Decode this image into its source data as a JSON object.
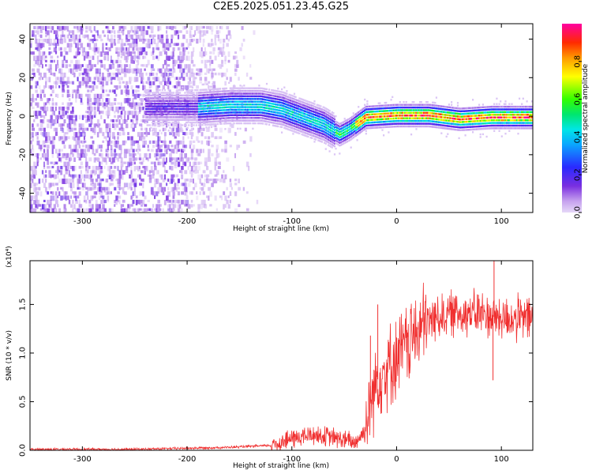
{
  "title": "C2E5.2025.051.23.45.G25",
  "colors": {
    "spectrogram_low": "#c8a8f0",
    "spectrogram_mid": "#7a2fe0",
    "snr_line": "#f03030"
  },
  "chart_data": [
    {
      "type": "heatmap",
      "title": "C2E5.2025.051.23.45.G25",
      "xlabel": "Height of straight line (km)",
      "ylabel": "Frequency (Hz)",
      "xlim": [
        -350,
        130
      ],
      "ylim": [
        -50,
        48
      ],
      "x_ticks": [
        -300,
        -200,
        -100,
        0,
        100
      ],
      "y_ticks": [
        -40,
        -20,
        0,
        20,
        40
      ],
      "colorbar": {
        "label": "Normalized spectral amplitude",
        "range": [
          0,
          1
        ],
        "ticks": [
          "0.0",
          "0.2",
          "0.4",
          "0.6",
          "0.8"
        ],
        "tick_values": [
          0,
          0.2,
          0.4,
          0.6,
          0.8
        ],
        "colormap": "rainbow (violet-blue-cyan-green-yellow-red-magenta)"
      },
      "signal_track": [
        {
          "x": -190,
          "y": 5
        },
        {
          "x": -160,
          "y": 6
        },
        {
          "x": -130,
          "y": 6
        },
        {
          "x": -110,
          "y": 4
        },
        {
          "x": -90,
          "y": 0
        },
        {
          "x": -70,
          "y": -4
        },
        {
          "x": -55,
          "y": -9
        },
        {
          "x": -45,
          "y": -6
        },
        {
          "x": -30,
          "y": 0
        },
        {
          "x": 0,
          "y": 1
        },
        {
          "x": 30,
          "y": 1
        },
        {
          "x": 60,
          "y": -1
        },
        {
          "x": 90,
          "y": 0
        },
        {
          "x": 130,
          "y": 0
        }
      ],
      "noise_region_x": [
        -350,
        -130
      ]
    },
    {
      "type": "line",
      "xlabel": "Height of straight line (km)",
      "ylabel": "SNR (10 * v/v)",
      "y_scale_label": "(x10⁴)",
      "xlim": [
        -350,
        130
      ],
      "ylim": [
        0,
        1.95
      ],
      "x_ticks": [
        -300,
        -200,
        -100,
        0,
        100
      ],
      "y_ticks": [
        "0.0",
        "0.5",
        "1.0",
        "1.5"
      ],
      "y_tick_values": [
        0,
        0.5,
        1.0,
        1.5
      ],
      "series": [
        {
          "points": [
            {
              "x": -350,
              "y": 0.01
            },
            {
              "x": -250,
              "y": 0.01
            },
            {
              "x": -160,
              "y": 0.03
            },
            {
              "x": -120,
              "y": 0.05
            },
            {
              "x": -100,
              "y": 0.12
            },
            {
              "x": -80,
              "y": 0.16
            },
            {
              "x": -60,
              "y": 0.13
            },
            {
              "x": -40,
              "y": 0.08
            },
            {
              "x": -30,
              "y": 0.2
            },
            {
              "x": -25,
              "y": 0.5
            },
            {
              "x": -20,
              "y": 0.7
            },
            {
              "x": -10,
              "y": 0.85
            },
            {
              "x": 0,
              "y": 0.95
            },
            {
              "x": 10,
              "y": 1.1
            },
            {
              "x": 20,
              "y": 1.22
            },
            {
              "x": 30,
              "y": 1.32
            },
            {
              "x": 40,
              "y": 1.38
            },
            {
              "x": 60,
              "y": 1.42
            },
            {
              "x": 80,
              "y": 1.4
            },
            {
              "x": 90,
              "y": 1.38
            },
            {
              "x": 100,
              "y": 1.36
            },
            {
              "x": 115,
              "y": 1.35
            },
            {
              "x": 130,
              "y": 1.36
            }
          ],
          "spikes": [
            {
              "x": -18,
              "y": 1.5
            },
            {
              "x": -25,
              "y": 1.18
            },
            {
              "x": 78,
              "y": 1.6
            },
            {
              "x": 93,
              "y": 1.95
            },
            {
              "x": 92,
              "y": 0.72
            }
          ]
        }
      ]
    }
  ]
}
